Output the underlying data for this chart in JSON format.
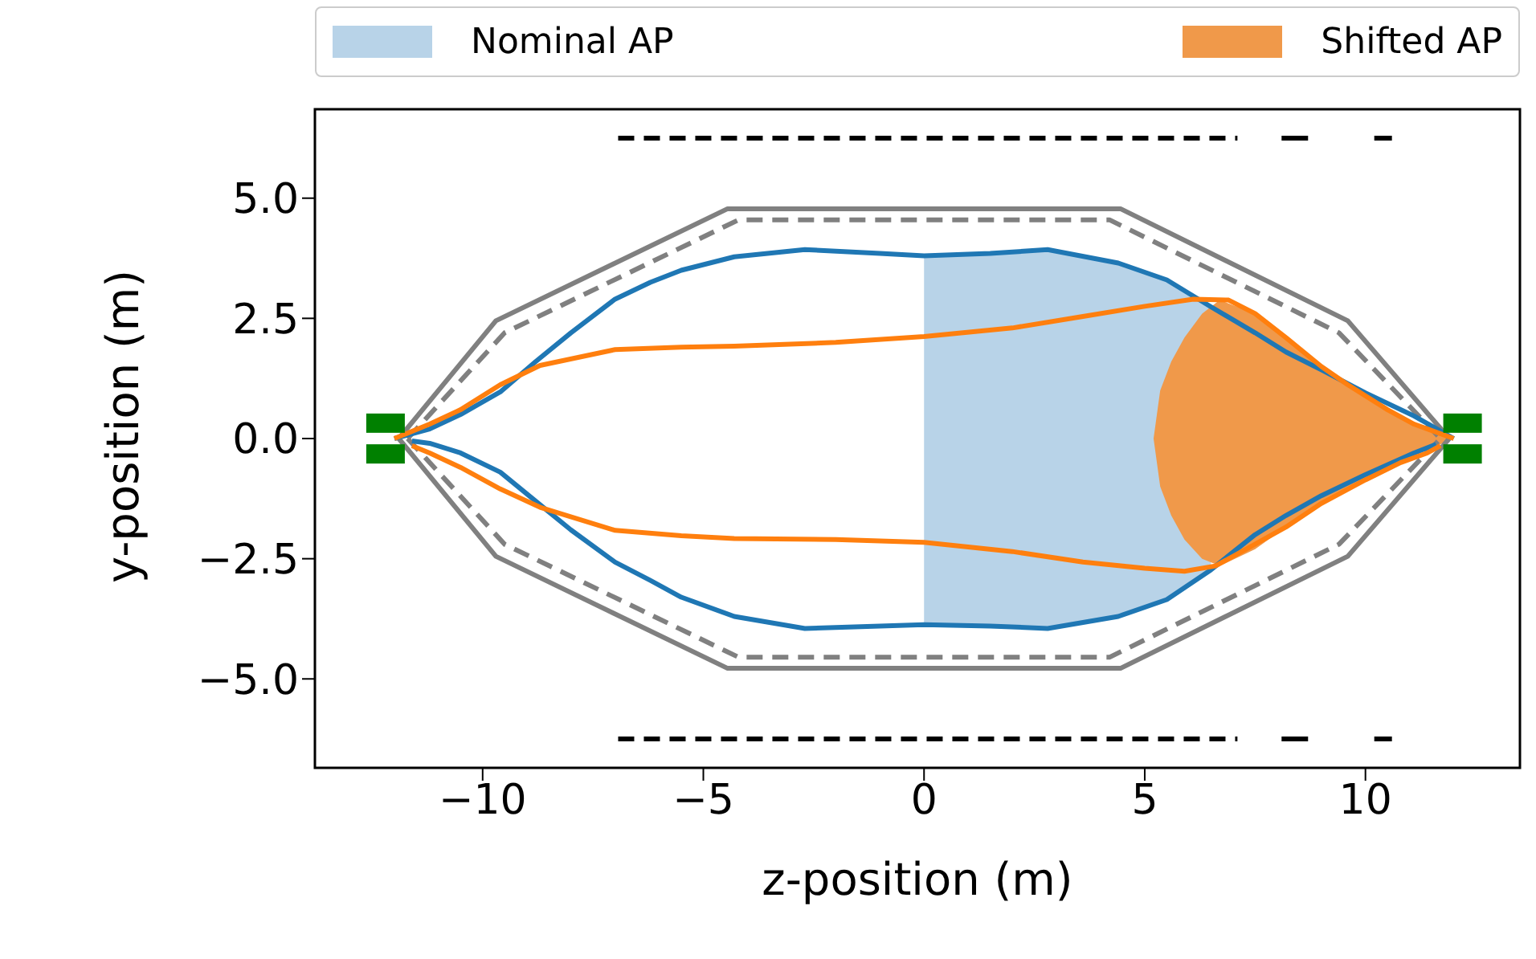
{
  "chart_data": {
    "type": "line",
    "xlabel": "z-position (m)",
    "ylabel": "y-position (m)",
    "xlim": [
      -13.8,
      13.5
    ],
    "ylim": [
      -6.85,
      6.85
    ],
    "xticks": [
      {
        "value": -10,
        "label": "−10"
      },
      {
        "value": -5,
        "label": "−5"
      },
      0,
      5,
      10
    ],
    "yticks": [
      {
        "value": -5,
        "label": "−5.0"
      },
      {
        "value": -2.5,
        "label": "−2.5"
      },
      {
        "value": 0,
        "label": "0.0"
      },
      {
        "value": 2.5,
        "label": "2.5"
      },
      {
        "value": 5,
        "label": "5.0"
      }
    ],
    "legend": "top",
    "marker": "none",
    "series": [
      {
        "name": "Nominal AP",
        "type": "area",
        "color": "#b8d3e8",
        "x": [
          0,
          1.5,
          2.8,
          4.4,
          5.5,
          6.5,
          6.5,
          5.5,
          4.4,
          2.8,
          1.5,
          0
        ],
        "values": [
          3.8,
          3.85,
          3.93,
          3.65,
          3.3,
          2.74,
          -2.73,
          -3.35,
          -3.7,
          -3.95,
          -3.9,
          -3.87
        ]
      },
      {
        "color": "#808080",
        "line_style": "solid",
        "x": [
          -11.9,
          -9.7,
          -4.45,
          4.45,
          9.6,
          11.9
        ],
        "values": [
          0,
          2.45,
          4.78,
          4.78,
          2.45,
          0
        ]
      },
      {
        "color": "#808080",
        "line_style": "solid",
        "x": [
          -11.9,
          -9.7,
          -4.45,
          4.45,
          9.6,
          11.9
        ],
        "values": [
          0,
          -2.45,
          -4.78,
          -4.78,
          -2.45,
          0
        ]
      },
      {
        "color": "#808080",
        "line_style": "dashed",
        "x": [
          -11.7,
          -9.5,
          -4.2,
          4.2,
          9.4,
          11.7
        ],
        "values": [
          0,
          2.2,
          4.55,
          4.55,
          2.2,
          0
        ]
      },
      {
        "color": "#808080",
        "line_style": "dashed",
        "x": [
          -11.7,
          -9.5,
          -4.2,
          4.2,
          9.4,
          11.7
        ],
        "values": [
          0,
          -2.2,
          -4.55,
          -4.55,
          -2.2,
          0
        ]
      },
      {
        "color": "#1f77b4",
        "line_style": "solid",
        "x": [
          -12,
          -11.2,
          -10.5,
          -9.6,
          -8.8,
          -8,
          -7,
          -6.2,
          -5.5,
          -4.3,
          -2.7,
          -1,
          0,
          1.5,
          2.8,
          4.4,
          5.5,
          6.5,
          7.5,
          8.2,
          9,
          10,
          11.1,
          12
        ],
        "values": [
          0,
          0.2,
          0.5,
          0.97,
          1.6,
          2.2,
          2.9,
          3.25,
          3.5,
          3.78,
          3.93,
          3.85,
          3.8,
          3.85,
          3.93,
          3.65,
          3.3,
          2.74,
          2.2,
          1.8,
          1.43,
          0.95,
          0.47,
          0
        ]
      },
      {
        "color": "#1f77b4",
        "line_style": "solid",
        "x": [
          -11.6,
          -11.2,
          -10.5,
          -9.6,
          -8.8,
          -8,
          -7,
          -6.2,
          -5.5,
          -4.3,
          -2.7,
          -1,
          0,
          1.5,
          2.8,
          4.4,
          5.5,
          6.5,
          7.5,
          8.2,
          9,
          10,
          11.1,
          11.6
        ],
        "values": [
          -0.05,
          -0.1,
          -0.3,
          -0.7,
          -1.3,
          -1.9,
          -2.57,
          -2.95,
          -3.3,
          -3.7,
          -3.95,
          -3.9,
          -3.87,
          -3.9,
          -3.95,
          -3.7,
          -3.35,
          -2.73,
          -2,
          -1.6,
          -1.19,
          -0.75,
          -0.3,
          -0.12
        ]
      },
      {
        "name": "Shifted AP",
        "type": "area",
        "color": "#f0994a",
        "x": [
          5.2,
          5.35,
          5.6,
          5.9,
          6.3,
          6.7,
          7.5,
          8.2,
          9,
          10,
          11,
          12,
          11,
          10,
          9,
          8.2,
          7.5,
          6.7,
          6.3,
          5.9,
          5.6,
          5.35,
          5.2
        ],
        "values": [
          0,
          1,
          1.6,
          2.1,
          2.6,
          2.88,
          2.6,
          2.1,
          1.5,
          0.85,
          0.35,
          0,
          -0.4,
          -0.86,
          -1.35,
          -1.84,
          -2.3,
          -2.65,
          -2.5,
          -2.1,
          -1.6,
          -1,
          0
        ]
      },
      {
        "color": "#ff7f0e",
        "line_style": "solid",
        "x": [
          -12,
          -11.2,
          -10.5,
          -9.6,
          -8.7,
          -7,
          -5.5,
          -4.3,
          -2,
          0,
          2,
          3.6,
          5,
          6.1,
          6.9,
          7.5,
          8.2,
          9,
          9.6,
          10.5,
          11.1,
          12
        ],
        "values": [
          0,
          0.3,
          0.6,
          1.12,
          1.52,
          1.85,
          1.9,
          1.92,
          2,
          2.12,
          2.3,
          2.54,
          2.75,
          2.9,
          2.88,
          2.6,
          2.1,
          1.5,
          1.12,
          0.6,
          0.3,
          0
        ]
      },
      {
        "color": "#ff7f0e",
        "line_style": "solid",
        "x": [
          -11.6,
          -11.2,
          -10.5,
          -9.6,
          -8.7,
          -7,
          -5.5,
          -4.3,
          -2,
          0,
          2,
          3.6,
          5,
          5.9,
          6.6,
          7.3,
          8.2,
          9,
          10,
          10.8,
          11.4,
          11.7
        ],
        "values": [
          -0.15,
          -0.3,
          -0.6,
          -1.05,
          -1.43,
          -1.91,
          -2.02,
          -2.08,
          -2.1,
          -2.16,
          -2.35,
          -2.57,
          -2.7,
          -2.76,
          -2.65,
          -2.3,
          -1.84,
          -1.35,
          -0.86,
          -0.5,
          -0.3,
          -0.15
        ]
      },
      {
        "color": "#000000",
        "line_style": "dashed",
        "x": [
          -6.93,
          7.1
        ],
        "values": [
          6.25,
          6.25
        ]
      },
      {
        "color": "#000000",
        "line_style": "solid",
        "x": [
          8.1,
          8.7,
          8.75,
          10.2,
          10.6
        ],
        "values": [
          6.25,
          6.25,
          null,
          6.25,
          6.25
        ]
      },
      {
        "color": "#000000",
        "line_style": "dashed",
        "x": [
          -6.93,
          7.1
        ],
        "values": [
          -6.25,
          -6.25
        ]
      },
      {
        "color": "#000000",
        "line_style": "solid",
        "x": [
          8.1,
          8.7,
          8.75,
          10.2,
          10.6
        ],
        "values": [
          -6.25,
          -6.25,
          null,
          -6.25,
          -6.25
        ]
      },
      {
        "type": "scatter",
        "color": "#008000",
        "marker": "square",
        "x": [
          -12.2,
          -12.2,
          12.2,
          12.2
        ],
        "values": [
          0.32,
          -0.32,
          0.32,
          -0.32
        ]
      }
    ]
  }
}
